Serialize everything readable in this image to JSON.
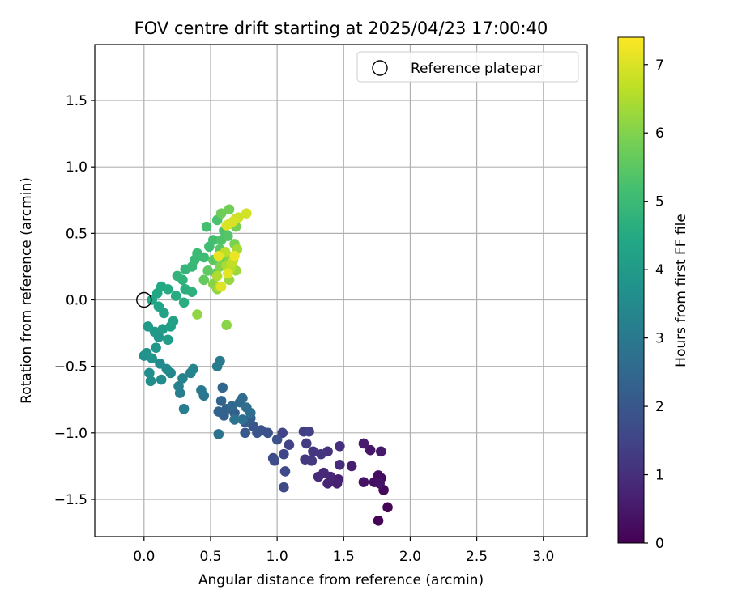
{
  "chart_data": {
    "type": "scatter",
    "title": "FOV centre drift starting at 2025/04/23 17:00:40",
    "xlabel": "Angular distance from reference (arcmin)",
    "ylabel": "Rotation from reference (arcmin)",
    "xlim": [
      -0.37,
      3.33
    ],
    "ylim": [
      -1.78,
      1.92
    ],
    "xticks": [
      0.0,
      0.5,
      1.0,
      1.5,
      2.0,
      2.5,
      3.0
    ],
    "xtick_labels": [
      "0.0",
      "0.5",
      "1.0",
      "1.5",
      "2.0",
      "2.5",
      "3.0"
    ],
    "yticks": [
      -1.5,
      -1.0,
      -0.5,
      0.0,
      0.5,
      1.0,
      1.5
    ],
    "ytick_labels": [
      "−1.5",
      "−1.0",
      "−0.5",
      "0.0",
      "0.5",
      "1.0",
      "1.5"
    ],
    "grid": true,
    "legend": {
      "position": "top-right",
      "entries": [
        "Reference platepar"
      ]
    },
    "reference_point": {
      "x": 0.0,
      "y": 0.0,
      "label": "Reference platepar"
    },
    "colorbar": {
      "label": "Hours from first FF file",
      "colormap": "viridis",
      "range": [
        0,
        7.4
      ],
      "ticks": [
        0,
        1,
        2,
        3,
        4,
        5,
        6,
        7
      ],
      "tick_labels": [
        "0",
        "1",
        "2",
        "3",
        "4",
        "5",
        "6",
        "7"
      ]
    },
    "points": [
      [
        1.76,
        -1.66,
        0.05
      ],
      [
        1.83,
        -1.56,
        0.1
      ],
      [
        1.8,
        -1.43,
        0.15
      ],
      [
        1.78,
        -1.34,
        0.2
      ],
      [
        1.76,
        -1.32,
        0.25
      ],
      [
        1.73,
        -1.37,
        0.3
      ],
      [
        1.65,
        -1.37,
        0.35
      ],
      [
        1.77,
        -1.38,
        0.4
      ],
      [
        1.7,
        -1.13,
        0.45
      ],
      [
        1.78,
        -1.14,
        0.5
      ],
      [
        1.65,
        -1.08,
        0.55
      ],
      [
        1.56,
        -1.25,
        0.6
      ],
      [
        1.46,
        -1.35,
        0.65
      ],
      [
        1.45,
        -1.38,
        0.7
      ],
      [
        1.38,
        -1.38,
        0.75
      ],
      [
        1.4,
        -1.33,
        0.8
      ],
      [
        1.35,
        -1.3,
        0.85
      ],
      [
        1.31,
        -1.33,
        0.9
      ],
      [
        1.47,
        -1.24,
        0.95
      ],
      [
        1.47,
        -1.1,
        1.0
      ],
      [
        1.38,
        -1.14,
        1.05
      ],
      [
        1.33,
        -1.16,
        1.1
      ],
      [
        1.27,
        -1.14,
        1.15
      ],
      [
        1.21,
        -1.2,
        1.2
      ],
      [
        1.26,
        -1.21,
        1.25
      ],
      [
        1.22,
        -1.08,
        1.3
      ],
      [
        1.2,
        -0.99,
        1.35
      ],
      [
        1.24,
        -0.99,
        1.4
      ],
      [
        1.09,
        -1.09,
        1.45
      ],
      [
        1.04,
        -1.0,
        1.5
      ],
      [
        1.05,
        -1.16,
        1.55
      ],
      [
        1.06,
        -1.29,
        1.6
      ],
      [
        1.05,
        -1.41,
        1.65
      ],
      [
        0.97,
        -1.19,
        1.7
      ],
      [
        0.98,
        -1.21,
        1.75
      ],
      [
        1.0,
        -1.05,
        1.8
      ],
      [
        0.93,
        -1.0,
        1.85
      ],
      [
        0.88,
        -0.98,
        1.9
      ],
      [
        0.85,
        -1.0,
        1.95
      ],
      [
        0.82,
        -0.95,
        2.0
      ],
      [
        0.76,
        -1.0,
        2.05
      ],
      [
        0.76,
        -0.92,
        2.1
      ],
      [
        0.8,
        -0.89,
        2.15
      ],
      [
        0.68,
        -0.85,
        2.2
      ],
      [
        0.6,
        -0.87,
        2.25
      ],
      [
        0.62,
        -0.82,
        2.3
      ],
      [
        0.56,
        -0.84,
        2.35
      ],
      [
        0.58,
        -0.76,
        2.4
      ],
      [
        0.59,
        -0.66,
        2.45
      ],
      [
        0.66,
        -0.8,
        2.5
      ],
      [
        0.72,
        -0.77,
        2.55
      ],
      [
        0.74,
        -0.74,
        2.6
      ],
      [
        0.77,
        -0.81,
        2.65
      ],
      [
        0.8,
        -0.85,
        2.7
      ],
      [
        0.74,
        -0.9,
        2.75
      ],
      [
        0.68,
        -0.9,
        2.8
      ],
      [
        0.56,
        -1.01,
        2.85
      ],
      [
        0.45,
        -0.72,
        2.9
      ],
      [
        0.43,
        -0.68,
        2.95
      ],
      [
        0.57,
        -0.46,
        3.0
      ],
      [
        0.55,
        -0.5,
        3.05
      ],
      [
        0.3,
        -0.82,
        3.1
      ],
      [
        0.27,
        -0.7,
        3.15
      ],
      [
        0.26,
        -0.65,
        3.2
      ],
      [
        0.29,
        -0.59,
        3.25
      ],
      [
        0.35,
        -0.55,
        3.3
      ],
      [
        0.37,
        -0.52,
        3.35
      ],
      [
        0.2,
        -0.55,
        3.4
      ],
      [
        0.17,
        -0.52,
        3.45
      ],
      [
        0.12,
        -0.48,
        3.5
      ],
      [
        0.13,
        -0.6,
        3.55
      ],
      [
        0.05,
        -0.61,
        3.6
      ],
      [
        0.04,
        -0.55,
        3.65
      ],
      [
        0.0,
        -0.42,
        3.7
      ],
      [
        0.02,
        -0.4,
        3.75
      ],
      [
        0.06,
        -0.44,
        3.8
      ],
      [
        0.09,
        -0.36,
        3.85
      ],
      [
        0.11,
        -0.28,
        3.9
      ],
      [
        0.08,
        -0.24,
        3.95
      ],
      [
        0.03,
        -0.2,
        4.0
      ],
      [
        0.14,
        -0.22,
        4.05
      ],
      [
        0.18,
        -0.3,
        4.1
      ],
      [
        0.2,
        -0.2,
        4.15
      ],
      [
        0.22,
        -0.16,
        4.2
      ],
      [
        0.15,
        -0.1,
        4.25
      ],
      [
        0.11,
        -0.05,
        4.3
      ],
      [
        0.06,
        0.0,
        4.35
      ],
      [
        0.1,
        0.05,
        4.4
      ],
      [
        0.13,
        0.1,
        4.45
      ],
      [
        0.18,
        0.08,
        4.5
      ],
      [
        0.24,
        0.03,
        4.55
      ],
      [
        0.3,
        -0.02,
        4.6
      ],
      [
        0.31,
        0.08,
        4.65
      ],
      [
        0.36,
        0.06,
        4.7
      ],
      [
        0.29,
        0.15,
        4.75
      ],
      [
        0.25,
        0.18,
        4.8
      ],
      [
        0.31,
        0.23,
        4.85
      ],
      [
        0.36,
        0.25,
        4.9
      ],
      [
        0.38,
        0.3,
        4.95
      ],
      [
        0.4,
        0.35,
        5.0
      ],
      [
        0.45,
        0.32,
        5.05
      ],
      [
        0.49,
        0.4,
        5.1
      ],
      [
        0.52,
        0.45,
        5.15
      ],
      [
        0.47,
        0.55,
        5.2
      ],
      [
        0.55,
        0.6,
        5.25
      ],
      [
        0.6,
        0.52,
        5.3
      ],
      [
        0.58,
        0.45,
        5.35
      ],
      [
        0.63,
        0.48,
        5.4
      ],
      [
        0.57,
        0.38,
        5.45
      ],
      [
        0.52,
        0.3,
        5.5
      ],
      [
        0.48,
        0.22,
        5.55
      ],
      [
        0.45,
        0.15,
        5.6
      ],
      [
        0.54,
        0.2,
        5.65
      ],
      [
        0.6,
        0.28,
        5.7
      ],
      [
        0.58,
        0.65,
        5.75
      ],
      [
        0.64,
        0.68,
        5.8
      ],
      [
        0.69,
        0.55,
        5.85
      ],
      [
        0.68,
        0.42,
        5.9
      ],
      [
        0.63,
        0.33,
        5.95
      ],
      [
        0.57,
        0.25,
        6.0
      ],
      [
        0.52,
        0.12,
        6.05
      ],
      [
        0.62,
        -0.19,
        6.1
      ],
      [
        0.4,
        -0.11,
        6.15
      ],
      [
        0.55,
        0.08,
        6.2
      ],
      [
        0.64,
        0.15,
        6.25
      ],
      [
        0.69,
        0.22,
        6.3
      ],
      [
        0.67,
        0.3,
        6.35
      ],
      [
        0.7,
        0.38,
        6.4
      ],
      [
        0.62,
        0.26,
        6.45
      ],
      [
        0.55,
        0.18,
        6.5
      ],
      [
        0.57,
        0.1,
        6.55
      ],
      [
        0.65,
        0.24,
        6.6
      ],
      [
        0.61,
        0.36,
        6.65
      ],
      [
        0.66,
        0.28,
        6.7
      ],
      [
        0.64,
        0.57,
        6.75
      ],
      [
        0.69,
        0.61,
        6.8
      ],
      [
        0.71,
        0.62,
        6.85
      ],
      [
        0.77,
        0.65,
        6.9
      ],
      [
        0.67,
        0.59,
        6.95
      ],
      [
        0.62,
        0.56,
        7.0
      ],
      [
        0.58,
        0.1,
        7.05
      ],
      [
        0.63,
        0.2,
        7.1
      ],
      [
        0.56,
        0.33,
        7.15
      ],
      [
        0.68,
        0.33,
        7.2
      ]
    ]
  }
}
